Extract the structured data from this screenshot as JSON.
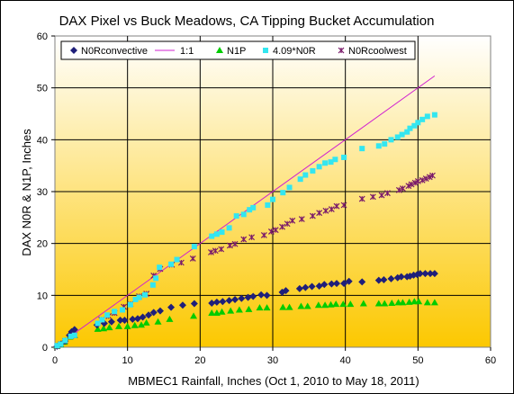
{
  "chart_data": {
    "type": "scatter",
    "title": "DAX Pixel vs Buck Meadows, CA Tipping Bucket Accumulation",
    "xlabel": "MBMEC1 Rainfall, Inches (Oct 1, 2010 to May 18, 2011)",
    "ylabel": "DAX N0R & N1P, Inches",
    "xlim": [
      0,
      60
    ],
    "ylim": [
      0,
      60
    ],
    "xticks": [
      0,
      10,
      20,
      30,
      40,
      50,
      60
    ],
    "yticks": [
      0,
      10,
      20,
      30,
      40,
      50,
      60
    ],
    "grid": true,
    "legend_position": "top",
    "background": {
      "top": "#ffffff",
      "bottom": "#fcc800"
    },
    "series": [
      {
        "name": "N0Rconvective",
        "marker": "diamond",
        "color": "#1f1f7a",
        "points": [
          [
            0.3,
            0.2
          ],
          [
            0.8,
            0.6
          ],
          [
            1.4,
            1.2
          ],
          [
            2.0,
            2.3
          ],
          [
            2.3,
            3.0
          ],
          [
            2.7,
            3.4
          ],
          [
            5.8,
            4.3
          ],
          [
            6.8,
            4.6
          ],
          [
            7.8,
            4.9
          ],
          [
            9.0,
            5.2
          ],
          [
            9.6,
            5.2
          ],
          [
            10.7,
            5.4
          ],
          [
            11.4,
            5.5
          ],
          [
            12.1,
            5.8
          ],
          [
            12.9,
            6.2
          ],
          [
            13.6,
            6.7
          ],
          [
            14.5,
            7.0
          ],
          [
            16.0,
            7.7
          ],
          [
            17.6,
            8.1
          ],
          [
            19.2,
            8.4
          ],
          [
            21.6,
            8.5
          ],
          [
            22.3,
            8.7
          ],
          [
            23.1,
            8.8
          ],
          [
            24.0,
            9.0
          ],
          [
            24.8,
            9.2
          ],
          [
            25.7,
            9.4
          ],
          [
            26.6,
            9.6
          ],
          [
            27.3,
            9.8
          ],
          [
            28.4,
            10.1
          ],
          [
            29.2,
            10.0
          ],
          [
            31.3,
            10.6
          ],
          [
            31.8,
            10.9
          ],
          [
            33.7,
            11.3
          ],
          [
            34.5,
            11.5
          ],
          [
            35.4,
            11.7
          ],
          [
            36.4,
            11.8
          ],
          [
            37.1,
            12.1
          ],
          [
            38.1,
            12.2
          ],
          [
            38.8,
            12.3
          ],
          [
            39.8,
            12.3
          ],
          [
            40.5,
            12.7
          ],
          [
            42.3,
            12.6
          ],
          [
            44.6,
            12.9
          ],
          [
            45.3,
            13.0
          ],
          [
            46.3,
            13.2
          ],
          [
            47.2,
            13.4
          ],
          [
            47.7,
            13.6
          ],
          [
            48.5,
            13.6
          ],
          [
            48.9,
            13.7
          ],
          [
            49.4,
            13.9
          ],
          [
            49.9,
            14.0
          ],
          [
            50.3,
            14.2
          ],
          [
            51.0,
            14.2
          ],
          [
            51.7,
            14.2
          ],
          [
            52.3,
            14.2
          ]
        ]
      },
      {
        "name": "1:1",
        "marker": "line",
        "color": "#d020d0",
        "points": [
          [
            0,
            0
          ],
          [
            52.3,
            52.3
          ]
        ]
      },
      {
        "name": "N1P",
        "marker": "triangle",
        "color": "#00cc00",
        "points": [
          [
            0.3,
            0.2
          ],
          [
            0.8,
            0.5
          ],
          [
            1.3,
            1.0
          ],
          [
            2.0,
            2.0
          ],
          [
            2.7,
            2.3
          ],
          [
            5.9,
            3.5
          ],
          [
            6.7,
            3.6
          ],
          [
            7.5,
            3.8
          ],
          [
            8.8,
            4.0
          ],
          [
            10.0,
            4.0
          ],
          [
            11.0,
            4.2
          ],
          [
            11.9,
            4.3
          ],
          [
            12.6,
            4.7
          ],
          [
            14.2,
            4.9
          ],
          [
            15.8,
            5.4
          ],
          [
            19.1,
            6.0
          ],
          [
            21.6,
            6.6
          ],
          [
            22.3,
            6.6
          ],
          [
            23.0,
            6.8
          ],
          [
            24.2,
            7.0
          ],
          [
            25.4,
            7.2
          ],
          [
            26.7,
            7.3
          ],
          [
            28.2,
            7.6
          ],
          [
            29.2,
            7.6
          ],
          [
            31.4,
            7.7
          ],
          [
            32.3,
            7.7
          ],
          [
            33.9,
            7.9
          ],
          [
            34.8,
            7.9
          ],
          [
            36.3,
            8.1
          ],
          [
            37.2,
            8.1
          ],
          [
            38.0,
            8.2
          ],
          [
            38.7,
            8.3
          ],
          [
            39.7,
            8.3
          ],
          [
            40.7,
            8.3
          ],
          [
            42.5,
            8.4
          ],
          [
            44.6,
            8.4
          ],
          [
            45.4,
            8.4
          ],
          [
            46.4,
            8.5
          ],
          [
            47.3,
            8.6
          ],
          [
            47.9,
            8.6
          ],
          [
            48.8,
            8.7
          ],
          [
            49.5,
            8.8
          ],
          [
            50.1,
            8.8
          ],
          [
            51.3,
            8.6
          ],
          [
            52.3,
            8.6
          ]
        ]
      },
      {
        "name": "4.09*N0R",
        "marker": "square",
        "color": "#33e6f0",
        "points": [
          [
            0.3,
            0.3
          ],
          [
            0.8,
            0.6
          ],
          [
            1.4,
            1.3
          ],
          [
            2.2,
            2.1
          ],
          [
            2.7,
            2.3
          ],
          [
            5.9,
            4.6
          ],
          [
            6.5,
            5.3
          ],
          [
            7.2,
            6.2
          ],
          [
            8.2,
            6.9
          ],
          [
            9.3,
            7.2
          ],
          [
            10.4,
            8.2
          ],
          [
            11.1,
            9.2
          ],
          [
            11.6,
            9.6
          ],
          [
            12.4,
            10.1
          ],
          [
            13.5,
            12.0
          ],
          [
            13.9,
            13.3
          ],
          [
            14.4,
            15.4
          ],
          [
            16.0,
            16.0
          ],
          [
            16.8,
            16.9
          ],
          [
            19.2,
            19.4
          ],
          [
            21.6,
            21.4
          ],
          [
            22.3,
            21.8
          ],
          [
            23.0,
            22.2
          ],
          [
            24.0,
            23.0
          ],
          [
            25.0,
            25.3
          ],
          [
            26.0,
            25.6
          ],
          [
            26.8,
            26.5
          ],
          [
            27.3,
            26.9
          ],
          [
            29.3,
            27.4
          ],
          [
            30.0,
            28.5
          ],
          [
            31.4,
            29.8
          ],
          [
            32.3,
            30.8
          ],
          [
            33.8,
            32.4
          ],
          [
            34.5,
            33.2
          ],
          [
            35.5,
            34.0
          ],
          [
            36.4,
            34.8
          ],
          [
            37.2,
            35.5
          ],
          [
            38.0,
            35.7
          ],
          [
            38.6,
            36.2
          ],
          [
            39.8,
            36.6
          ],
          [
            42.3,
            38.3
          ],
          [
            44.6,
            38.8
          ],
          [
            45.4,
            39.2
          ],
          [
            46.3,
            40.0
          ],
          [
            47.2,
            40.5
          ],
          [
            47.8,
            41.0
          ],
          [
            48.5,
            41.5
          ],
          [
            48.9,
            42.2
          ],
          [
            49.5,
            42.7
          ],
          [
            50.0,
            43.3
          ],
          [
            50.6,
            43.9
          ],
          [
            51.3,
            44.5
          ],
          [
            52.3,
            44.8
          ]
        ]
      },
      {
        "name": "N0Rcoolwest",
        "marker": "star",
        "color": "#7a1a6a",
        "points": [
          [
            0.3,
            0.2
          ],
          [
            0.8,
            0.6
          ],
          [
            1.4,
            1.2
          ],
          [
            2.2,
            2.1
          ],
          [
            2.7,
            2.3
          ],
          [
            6.4,
            5.3
          ],
          [
            7.4,
            6.0
          ],
          [
            8.2,
            6.6
          ],
          [
            9.5,
            7.8
          ],
          [
            10.4,
            8.3
          ],
          [
            11.6,
            9.8
          ],
          [
            12.6,
            10.3
          ],
          [
            13.6,
            13.8
          ],
          [
            14.5,
            15.1
          ],
          [
            16.1,
            15.9
          ],
          [
            17.4,
            16.3
          ],
          [
            19.0,
            17.1
          ],
          [
            21.5,
            18.3
          ],
          [
            22.1,
            18.6
          ],
          [
            22.9,
            18.9
          ],
          [
            24.1,
            19.6
          ],
          [
            24.8,
            19.9
          ],
          [
            26.0,
            20.8
          ],
          [
            27.1,
            21.2
          ],
          [
            28.8,
            21.6
          ],
          [
            29.8,
            22.3
          ],
          [
            30.4,
            22.6
          ],
          [
            31.3,
            23.2
          ],
          [
            32.0,
            23.8
          ],
          [
            32.7,
            24.4
          ],
          [
            34.0,
            24.7
          ],
          [
            35.5,
            25.3
          ],
          [
            36.4,
            25.9
          ],
          [
            37.3,
            26.3
          ],
          [
            38.1,
            26.6
          ],
          [
            38.8,
            27.2
          ],
          [
            39.8,
            27.4
          ],
          [
            42.3,
            28.6
          ],
          [
            43.8,
            29.0
          ],
          [
            45.0,
            29.3
          ],
          [
            45.8,
            29.7
          ],
          [
            47.4,
            30.3
          ],
          [
            47.9,
            30.6
          ],
          [
            48.7,
            31.1
          ],
          [
            49.1,
            31.4
          ],
          [
            49.6,
            31.7
          ],
          [
            50.0,
            32.0
          ],
          [
            50.6,
            32.2
          ],
          [
            51.1,
            32.5
          ],
          [
            51.6,
            32.8
          ],
          [
            52.0,
            33.1
          ]
        ]
      }
    ]
  }
}
